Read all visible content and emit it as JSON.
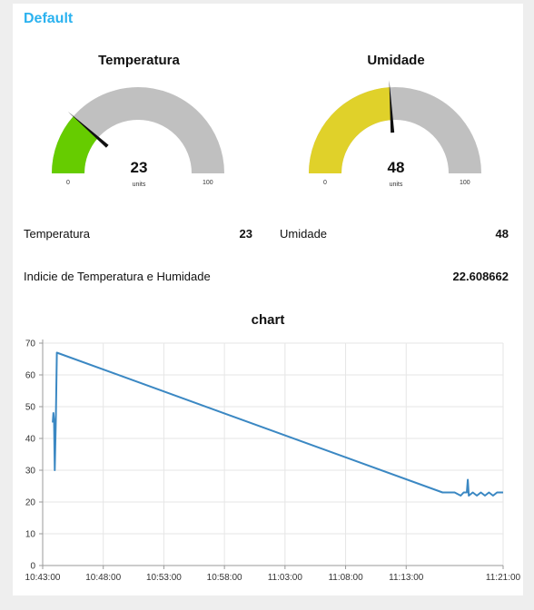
{
  "group": {
    "title": "Default"
  },
  "gauges": [
    {
      "title": "Temperatura",
      "value": 23,
      "min": 0,
      "max": 100,
      "units": "units",
      "color": "#66cc00"
    },
    {
      "title": "Umidade",
      "value": 48,
      "min": 0,
      "max": 100,
      "units": "units",
      "color": "#e0d12a"
    }
  ],
  "text_rows": [
    {
      "label": "Temperatura",
      "value": "23"
    },
    {
      "label": "Umidade",
      "value": "48"
    },
    {
      "label": "Indicie de Temperatura e Humidade",
      "value": "22.608662"
    }
  ],
  "colors": {
    "accent": "#2bb2ef",
    "gauge_track": "#c0c0c0",
    "line": "#3b88c3"
  },
  "chart_data": {
    "type": "line",
    "title": "chart",
    "xlabel": "",
    "ylabel": "",
    "ylim": [
      0,
      70
    ],
    "y_ticks": [
      0,
      10,
      20,
      30,
      40,
      50,
      60,
      70
    ],
    "x_ticks": [
      "10:43:00",
      "10:48:00",
      "10:53:00",
      "10:58:00",
      "11:03:00",
      "11:08:00",
      "11:13:00",
      "11:21:00"
    ],
    "x_range": [
      "10:43:00",
      "11:21:00"
    ],
    "grid": true,
    "legend": false,
    "series": [
      {
        "points": [
          [
            "10:43:50",
            45
          ],
          [
            "10:43:53",
            48
          ],
          [
            "10:43:56",
            46
          ],
          [
            "10:44:00",
            30
          ],
          [
            "10:44:05",
            46
          ],
          [
            "10:44:10",
            67
          ],
          [
            "11:16:00",
            23
          ],
          [
            "11:17:00",
            23
          ],
          [
            "11:17:30",
            22
          ],
          [
            "11:17:45",
            23
          ],
          [
            "11:18:00",
            23
          ],
          [
            "11:18:05",
            27
          ],
          [
            "11:18:10",
            22
          ],
          [
            "11:18:30",
            23
          ],
          [
            "11:18:50",
            22
          ],
          [
            "11:19:10",
            23
          ],
          [
            "11:19:30",
            22
          ],
          [
            "11:19:50",
            23
          ],
          [
            "11:20:10",
            22
          ],
          [
            "11:20:30",
            23
          ],
          [
            "11:21:00",
            23
          ]
        ]
      }
    ]
  }
}
